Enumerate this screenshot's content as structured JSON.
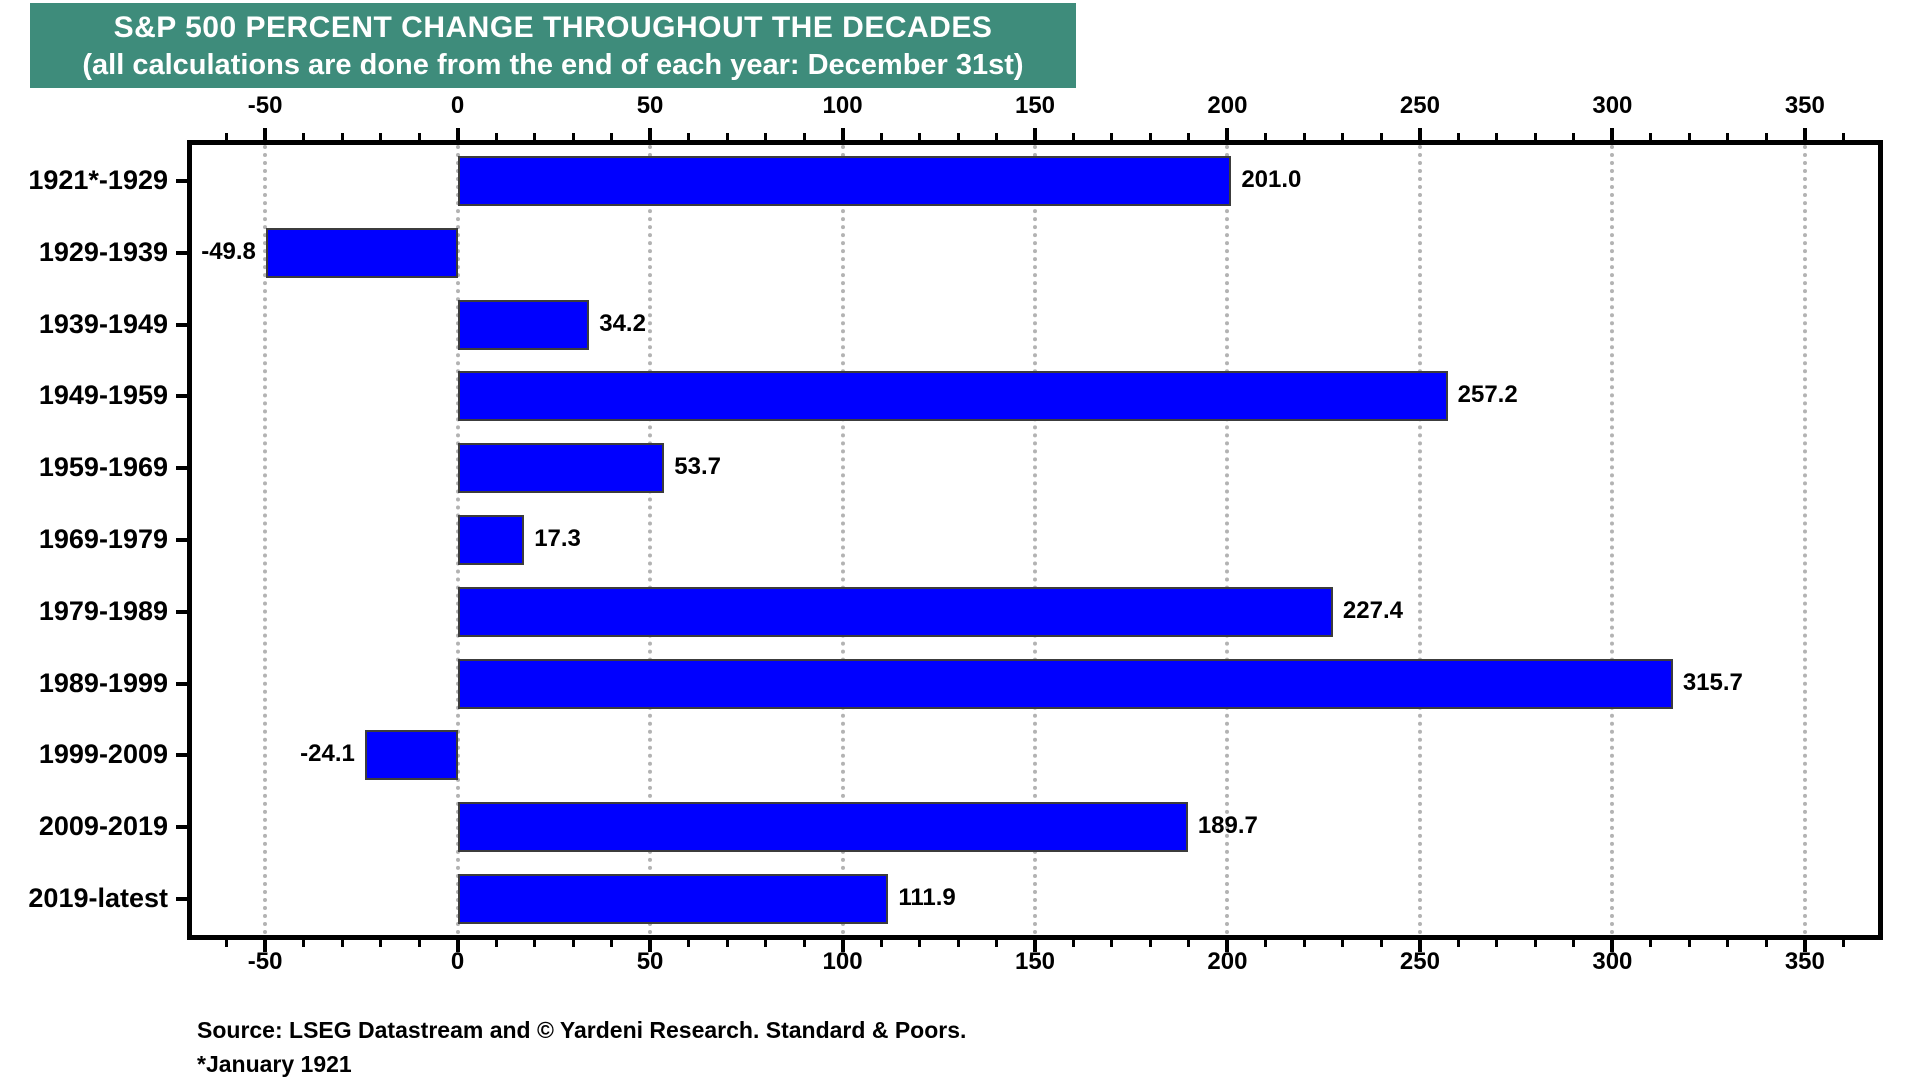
{
  "header": {
    "title": "S&P 500 PERCENT CHANGE THROUGHOUT THE DECADES",
    "subtitle": "(all calculations are done from the end of each year: December 31st)",
    "bg_color": "#3E8C7B",
    "text_color": "#FFFFFF"
  },
  "chart_data": {
    "type": "bar",
    "orientation": "horizontal",
    "title": "S&P 500 PERCENT CHANGE THROUGHOUT THE DECADES",
    "subtitle": "(all calculations are done from the end of each year: December 31st)",
    "categories": [
      "1921*-1929",
      "1929-1939",
      "1939-1949",
      "1949-1959",
      "1959-1969",
      "1969-1979",
      "1979-1989",
      "1989-1999",
      "1999-2009",
      "2009-2019",
      "2019-latest"
    ],
    "values": [
      201.0,
      -49.8,
      34.2,
      257.2,
      53.7,
      17.3,
      227.4,
      315.7,
      -24.1,
      189.7,
      111.9
    ],
    "value_labels": [
      "201.0",
      "-49.8",
      "34.2",
      "257.2",
      "53.7",
      "17.3",
      "227.4",
      "315.7",
      "-24.1",
      "189.7",
      "111.9"
    ],
    "xlabel": "",
    "ylabel": "",
    "xlim": [
      -69,
      369
    ],
    "x_major_ticks": [
      -50,
      0,
      50,
      100,
      150,
      200,
      250,
      300,
      350
    ],
    "x_major_tick_labels": [
      "-50",
      "0",
      "50",
      "100",
      "150",
      "200",
      "250",
      "300",
      "350"
    ],
    "x_minor_tick_step": 10,
    "grid": "vertical dotted lines at major ticks",
    "legend_position": "none",
    "axis_labels_position": "top and bottom",
    "bar_color": "#0000FF",
    "bar_border_color": "#3C3C3C",
    "grid_color": "#B3B3B3",
    "axis_color": "#000000"
  },
  "footer": {
    "source": "Source: LSEG Datastream and © Yardeni Research. Standard & Poors.",
    "note": "*January 1921"
  }
}
